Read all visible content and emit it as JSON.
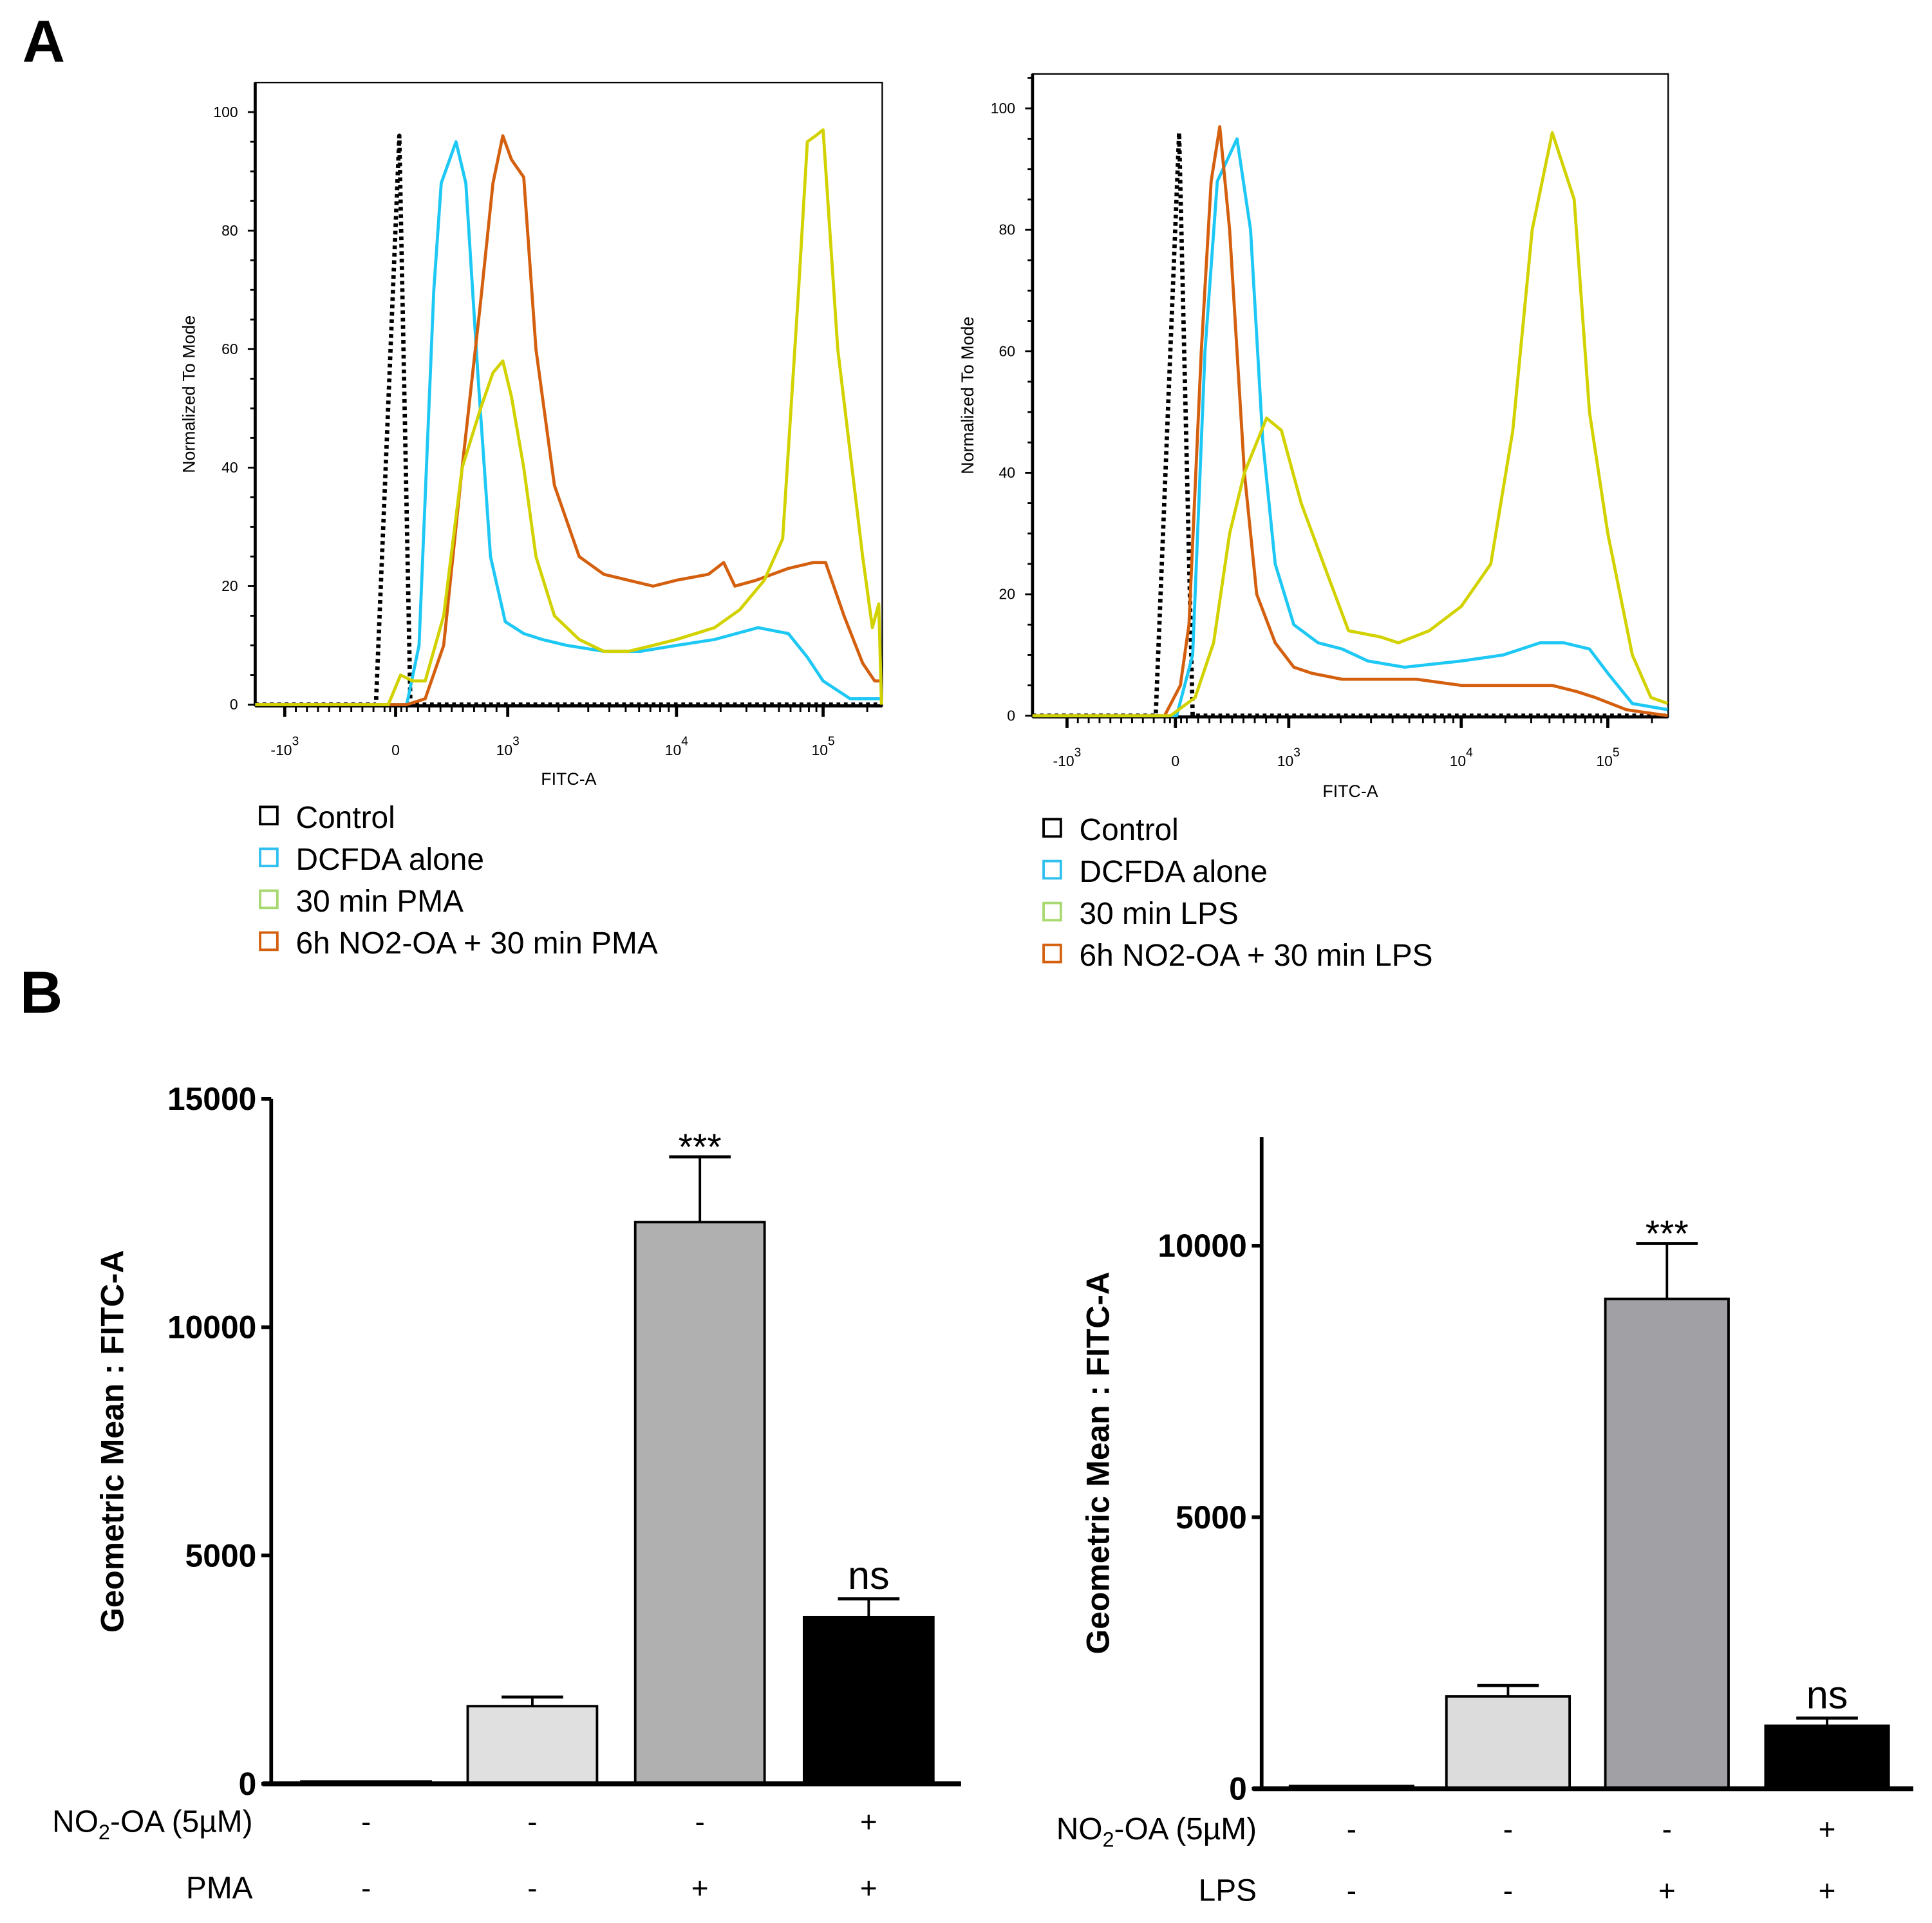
{
  "panel_labels": {
    "a": "A",
    "b": "B"
  },
  "chart_data": [
    {
      "id": "hist-pma",
      "type": "line",
      "title": "",
      "xlabel": "FITC-A",
      "ylabel": "Normalized To Mode",
      "ylim": [
        0,
        100
      ],
      "xscale": "biexponential",
      "xlim": [
        -1500,
        250000
      ],
      "yticks": [
        "0",
        "20",
        "40",
        "60",
        "80",
        "100"
      ],
      "xticks": [
        {
          "value": -1000,
          "base": "-10",
          "exp": "3"
        },
        {
          "value": 0,
          "base": "0",
          "exp": ""
        },
        {
          "value": 1000,
          "base": "10",
          "exp": "3"
        },
        {
          "value": 10000,
          "base": "10",
          "exp": "4"
        },
        {
          "value": 100000,
          "base": "10",
          "exp": "5"
        }
      ],
      "legend": [
        "Control",
        "DCFDA alone",
        "30 min PMA",
        "6h NO2-OA + 30 min PMA"
      ],
      "legend_placement": "bottom",
      "series": [
        {
          "name": "Control",
          "color": "#000000",
          "dashed": true,
          "x": [
            -1500,
            -178,
            33,
            132,
            250000
          ],
          "y": [
            0,
            0,
            96,
            0,
            0
          ]
        },
        {
          "name": "DCFDA alone",
          "color": "#1ec8f5",
          "x": [
            -1500,
            99,
            209,
            341,
            407,
            538,
            626,
            736,
            846,
            978,
            1244,
            1600,
            2240,
            3710,
            6140,
            10000,
            18200,
            36000,
            58000,
            78000,
            100000,
            153000,
            250000
          ],
          "y": [
            0,
            0,
            10,
            70,
            88,
            95,
            88,
            55,
            25,
            14,
            12,
            11,
            10,
            9,
            9,
            10,
            11,
            13,
            12,
            8,
            4,
            1,
            1
          ]
        },
        {
          "name": "30 min PMA",
          "color": "#d2d200",
          "x": [
            -1500,
            -67,
            44,
            154,
            264,
            429,
            593,
            758,
            868,
            956,
            1052,
            1244,
            1470,
            1890,
            2650,
            3710,
            5190,
            7270,
            10000,
            18200,
            27000,
            39700,
            53000,
            68000,
            78000,
            89000,
            100000,
            126000,
            186000,
            217000,
            240000,
            250000
          ],
          "y": [
            0,
            0,
            5,
            4,
            4,
            15,
            40,
            50,
            56,
            58,
            52,
            40,
            25,
            15,
            11,
            9,
            9,
            10,
            11,
            13,
            16,
            21,
            28,
            70,
            95,
            96,
            97,
            60,
            25,
            13,
            17,
            0
          ]
        },
        {
          "name": "6h NO2-OA + 30 min PMA",
          "color": "#d4600f",
          "x": [
            -1500,
            99,
            264,
            429,
            593,
            758,
            868,
            956,
            1052,
            1244,
            1470,
            1890,
            2650,
            3710,
            5190,
            7270,
            10000,
            16500,
            21000,
            25000,
            35000,
            58000,
            86000,
            104000,
            139000,
            186000,
            225000,
            250000
          ],
          "y": [
            0,
            0,
            1,
            10,
            40,
            68,
            88,
            96,
            92,
            89,
            60,
            37,
            25,
            22,
            21,
            20,
            21,
            22,
            24,
            20,
            21,
            23,
            24,
            24,
            15,
            7,
            4,
            4
          ]
        }
      ]
    },
    {
      "id": "hist-lps",
      "type": "line",
      "title": "",
      "xlabel": "FITC-A",
      "ylabel": "Normalized To Mode",
      "ylim": [
        0,
        100
      ],
      "xscale": "biexponential",
      "xlim": [
        -1500,
        256000
      ],
      "yticks": [
        "0",
        "20",
        "40",
        "60",
        "80",
        "100"
      ],
      "xticks": [
        {
          "value": -1000,
          "base": "-10",
          "exp": "3"
        },
        {
          "value": 0,
          "base": "0",
          "exp": ""
        },
        {
          "value": 1000,
          "base": "10",
          "exp": "3"
        },
        {
          "value": 10000,
          "base": "10",
          "exp": "4"
        },
        {
          "value": 100000,
          "base": "10",
          "exp": "5"
        }
      ],
      "legend": [
        "Control",
        "DCFDA alone",
        "30 min LPS",
        "6h NO2-OA + 30 min LPS"
      ],
      "legend_placement": "bottom",
      "series": [
        {
          "name": "Control",
          "color": "#000000",
          "dashed": true,
          "x": [
            -1500,
            -182,
            33,
            152,
            256000
          ],
          "y": [
            0,
            0,
            96,
            0,
            0
          ]
        },
        {
          "name": "DCFDA alone",
          "color": "#1ec8f5",
          "x": [
            -1500,
            11,
            152,
            261,
            370,
            543,
            663,
            772,
            880,
            1070,
            1480,
            2040,
            2880,
            4700,
            10000,
            19300,
            34500,
            50000,
            75000,
            100000,
            147000,
            256000
          ],
          "y": [
            0,
            0,
            10,
            60,
            88,
            95,
            80,
            45,
            25,
            15,
            12,
            11,
            9,
            8,
            9,
            10,
            12,
            12,
            11,
            7,
            2,
            1
          ]
        },
        {
          "name": "30 min LPS",
          "color": "#d2d200",
          "x": [
            -1500,
            -45,
            174,
            337,
            478,
            609,
            804,
            935,
            1180,
            1640,
            2220,
            3380,
            4320,
            6520,
            10000,
            15900,
            22500,
            30500,
            41800,
            59000,
            75000,
            100000,
            147000,
            197000,
            256000
          ],
          "y": [
            0,
            0,
            3,
            12,
            30,
            40,
            49,
            47,
            35,
            24,
            14,
            13,
            12,
            14,
            18,
            25,
            47,
            80,
            96,
            85,
            50,
            30,
            10,
            3,
            2
          ]
        },
        {
          "name": "6h NO2-OA + 30 min LPS",
          "color": "#d4600f",
          "x": [
            -1500,
            -100,
            43,
            120,
            228,
            315,
            391,
            478,
            609,
            717,
            880,
            1070,
            1360,
            2040,
            3380,
            5530,
            10000,
            23400,
            41800,
            61000,
            82000,
            134000,
            256000
          ],
          "y": [
            0,
            0,
            5,
            15,
            60,
            88,
            97,
            80,
            40,
            20,
            12,
            8,
            7,
            6,
            6,
            6,
            5,
            5,
            5,
            4,
            3,
            1,
            0
          ]
        }
      ]
    },
    {
      "id": "bar-pma",
      "type": "bar",
      "ylabel": "Geometric Mean : FITC-A",
      "ylim": [
        0,
        15000
      ],
      "yticks": [
        "0",
        "5000",
        "10000",
        "15000"
      ],
      "categories": [
        "1",
        "2",
        "3",
        "4"
      ],
      "values": [
        50,
        1700,
        12300,
        3650
      ],
      "errors": [
        0,
        200,
        1430,
        400
      ],
      "colors": [
        "#ffffff",
        "#e0e0e0",
        "#b0b0b0",
        "#000000"
      ],
      "annotations": [
        "",
        "",
        "***",
        "ns"
      ],
      "rows": [
        {
          "label_parts": [
            "NO",
            "2",
            "-OA (5µM)"
          ],
          "values": [
            "-",
            "-",
            "-",
            "+"
          ]
        },
        {
          "label_parts": [
            "PMA",
            "",
            ""
          ],
          "values": [
            "-",
            "-",
            "+",
            "+"
          ]
        }
      ]
    },
    {
      "id": "bar-lps",
      "type": "bar",
      "ylabel": "Geometric Mean : FITC-A",
      "ylim": [
        0,
        12000
      ],
      "yticks": [
        "0",
        "5000",
        "10000"
      ],
      "categories": [
        "1",
        "2",
        "3",
        "4"
      ],
      "values": [
        50,
        1700,
        9020,
        1160
      ],
      "errors": [
        0,
        200,
        1020,
        140
      ],
      "colors": [
        "#ffffff",
        "#dcdcdc",
        "#a0a0a5",
        "#000000"
      ],
      "annotations": [
        "",
        "",
        "***",
        "ns"
      ],
      "rows": [
        {
          "label_parts": [
            "NO",
            "2",
            "-OA (5µM)"
          ],
          "values": [
            "-",
            "-",
            "-",
            "+"
          ]
        },
        {
          "label_parts": [
            "LPS",
            "",
            ""
          ],
          "values": [
            "-",
            "-",
            "+",
            "+"
          ]
        }
      ]
    }
  ]
}
